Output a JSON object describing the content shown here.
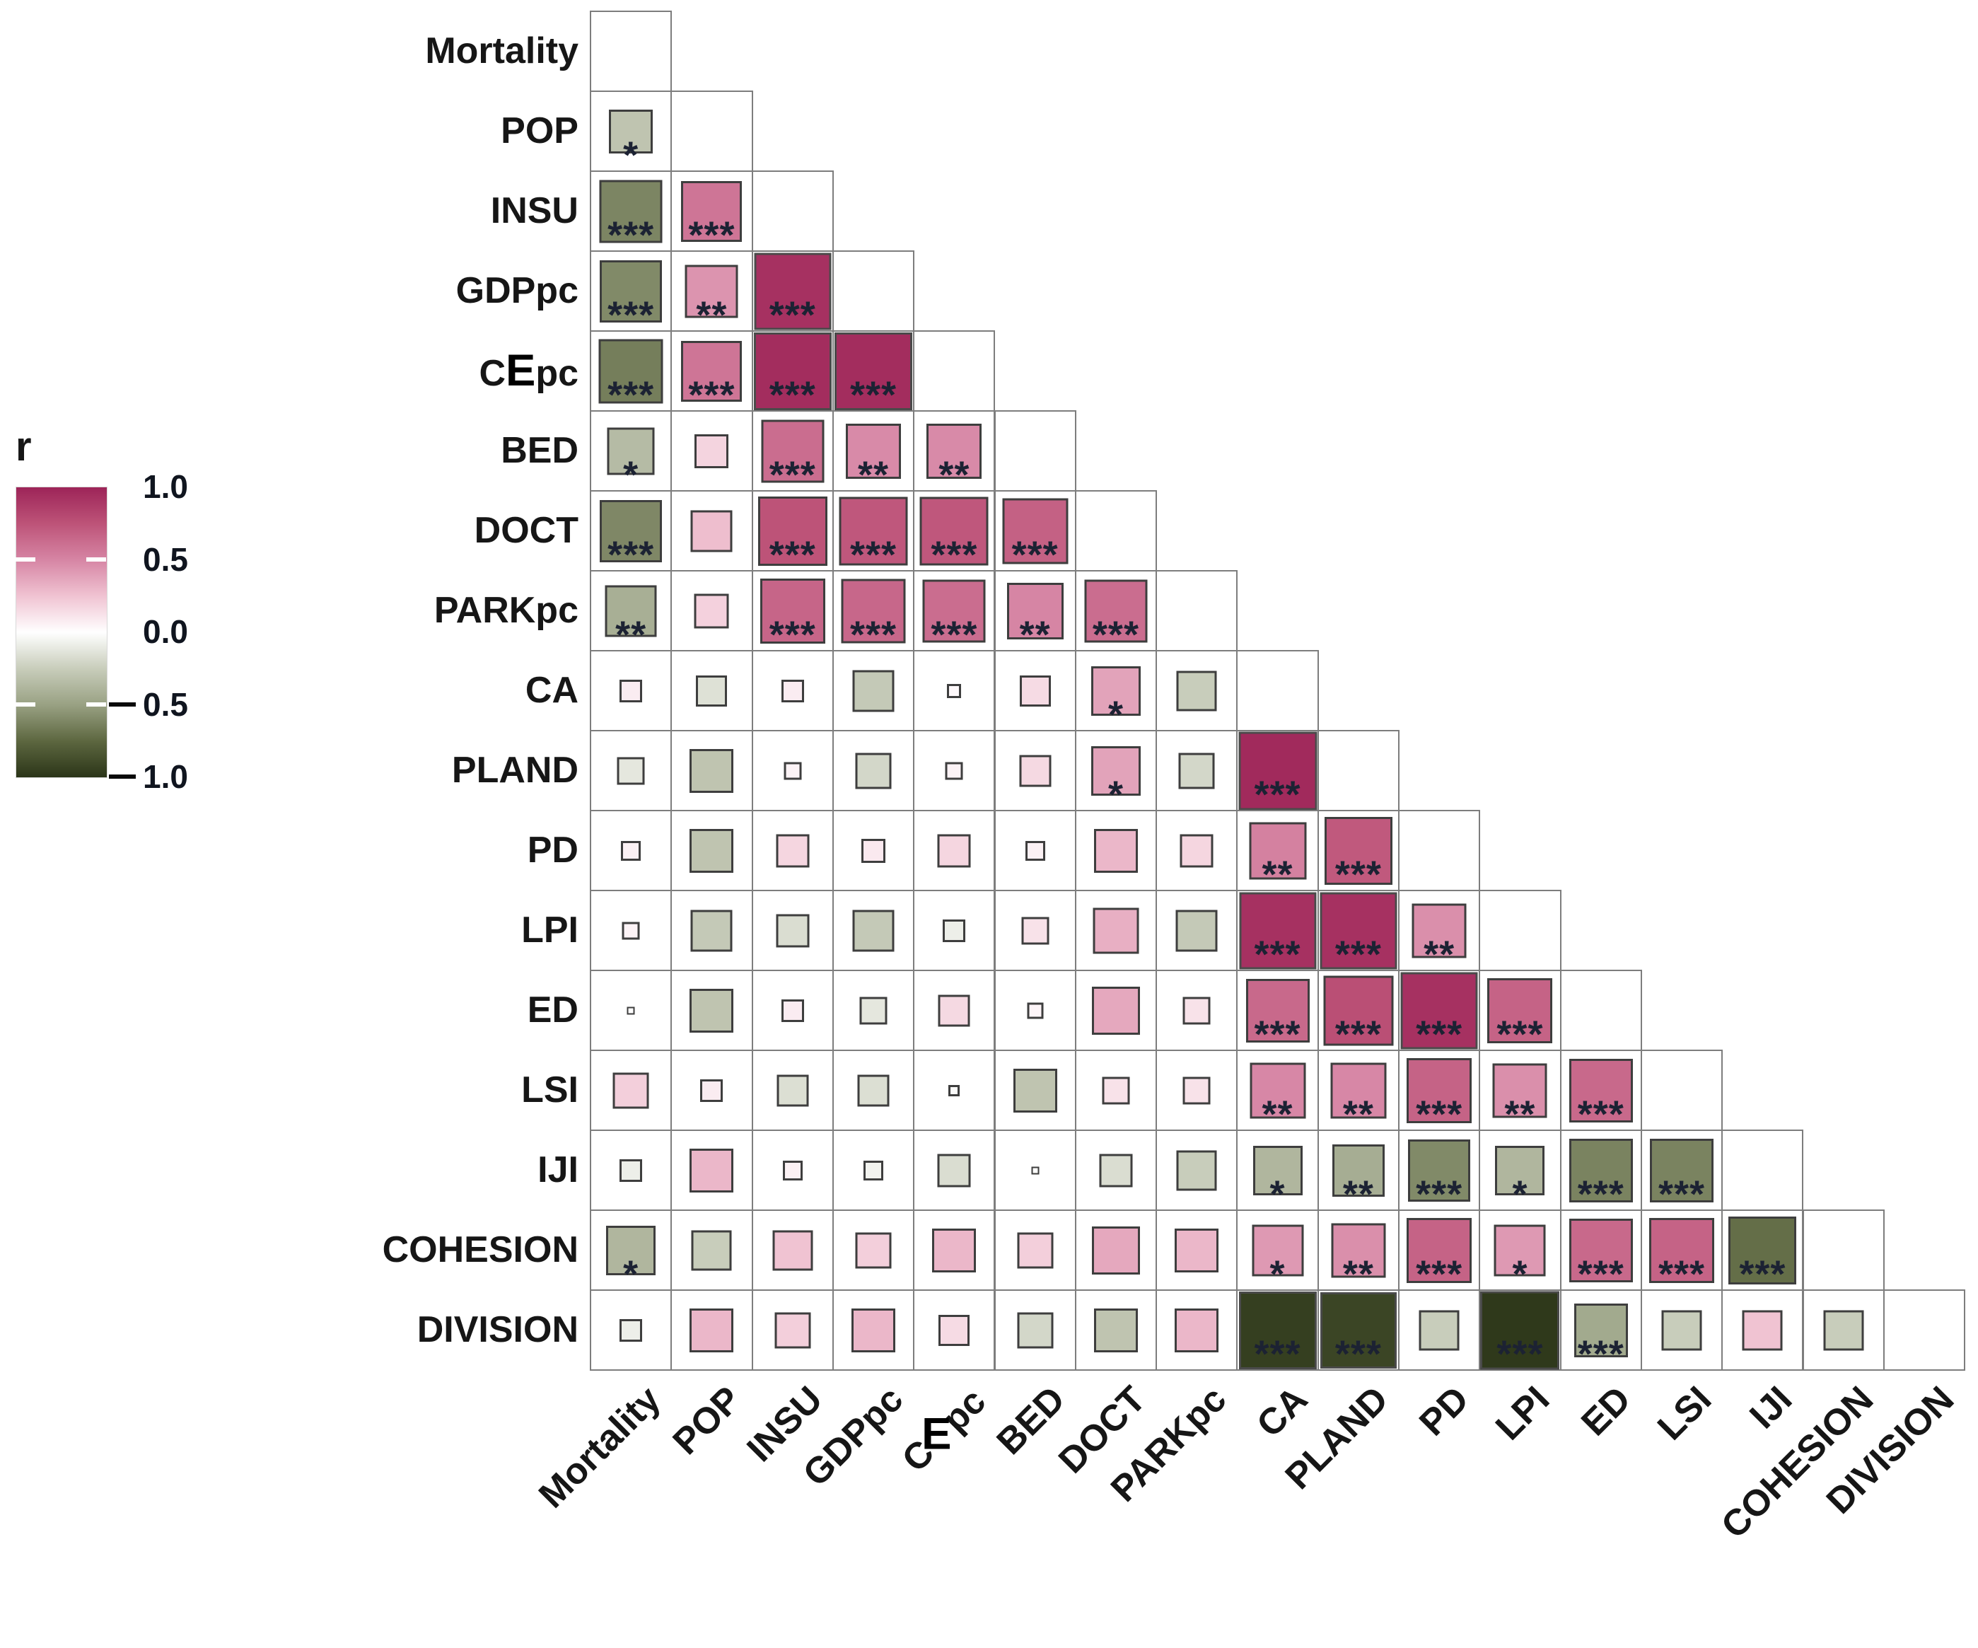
{
  "figure": {
    "kind": "lower-triangle correlation matrix plot",
    "background": "#ffffff",
    "text_color": "#161616",
    "grid_line_color": "#7d7d7d",
    "star_color": "#1c2233"
  },
  "legend": {
    "title": "r",
    "ticks": [
      {
        "label": "1.0",
        "r": 1.0
      },
      {
        "label": "0.5",
        "r": 0.5
      },
      {
        "label": "0.0",
        "r": 0.0
      },
      {
        "label": "-0.5",
        "r": -0.5
      },
      {
        "label": "-1.0",
        "r": -1.0
      }
    ]
  },
  "chart_data": {
    "type": "heatmap",
    "subtype": "correlation-matrix-lower-triangle",
    "value_name": "r",
    "value_range": [
      -1,
      1
    ],
    "square_size_encoding": "sqrt(|r|)",
    "significance_symbols_shown": [
      "*",
      "**",
      "***"
    ],
    "variables": [
      "Mortality",
      "POP",
      "INSU",
      "GDPpc",
      "CEpc",
      "BED",
      "DOCT",
      "PARKpc",
      "CA",
      "PLAND",
      "PD",
      "LPI",
      "ED",
      "LSI",
      "IJI",
      "COHESION",
      "DIVISION"
    ],
    "colormap": [
      {
        "r": -1.0,
        "color": "#2b3518"
      },
      {
        "r": -0.75,
        "color": "#5d6740"
      },
      {
        "r": -0.5,
        "color": "#99a183"
      },
      {
        "r": -0.25,
        "color": "#c8cdbb"
      },
      {
        "r": 0.0,
        "color": "#ffffff"
      },
      {
        "r": 0.25,
        "color": "#f0c3d2"
      },
      {
        "r": 0.5,
        "color": "#d685a4"
      },
      {
        "r": 0.75,
        "color": "#bd5378"
      },
      {
        "r": 1.0,
        "color": "#9d2458"
      }
    ],
    "rows": [
      {
        "var": "Mortality",
        "cells": []
      },
      {
        "var": "POP",
        "cells": [
          [
            -0.3,
            "*"
          ]
        ]
      },
      {
        "var": "INSU",
        "cells": [
          [
            -0.62,
            "***"
          ],
          [
            0.58,
            "***"
          ]
        ]
      },
      {
        "var": "GDPpc",
        "cells": [
          [
            -0.6,
            "***"
          ],
          [
            0.44,
            "**"
          ],
          [
            0.93,
            "***"
          ]
        ]
      },
      {
        "var": "CEpc",
        "cells": [
          [
            -0.65,
            "***"
          ],
          [
            0.58,
            "***"
          ],
          [
            0.95,
            "***"
          ],
          [
            0.95,
            "***"
          ]
        ]
      },
      {
        "var": "BED",
        "cells": [
          [
            -0.35,
            "*"
          ],
          [
            0.18,
            ""
          ],
          [
            0.62,
            "***"
          ],
          [
            0.48,
            "**"
          ],
          [
            0.48,
            "**"
          ]
        ]
      },
      {
        "var": "DOCT",
        "cells": [
          [
            -0.61,
            "***"
          ],
          [
            0.27,
            ""
          ],
          [
            0.75,
            "***"
          ],
          [
            0.73,
            "***"
          ],
          [
            0.73,
            "***"
          ],
          [
            0.68,
            "***"
          ]
        ]
      },
      {
        "var": "PARKpc",
        "cells": [
          [
            -0.42,
            "**"
          ],
          [
            0.19,
            ""
          ],
          [
            0.66,
            "***"
          ],
          [
            0.65,
            "***"
          ],
          [
            0.62,
            "***"
          ],
          [
            0.5,
            "**"
          ],
          [
            0.62,
            "***"
          ]
        ]
      },
      {
        "var": "CA",
        "cells": [
          [
            0.08,
            ""
          ],
          [
            -0.15,
            ""
          ],
          [
            0.08,
            ""
          ],
          [
            -0.27,
            ""
          ],
          [
            0.03,
            ""
          ],
          [
            0.15,
            ""
          ],
          [
            0.38,
            "*"
          ],
          [
            -0.25,
            ""
          ]
        ]
      },
      {
        "var": "PLAND",
        "cells": [
          [
            -0.12,
            ""
          ],
          [
            -0.3,
            ""
          ],
          [
            0.05,
            ""
          ],
          [
            -0.2,
            ""
          ],
          [
            0.05,
            ""
          ],
          [
            0.16,
            ""
          ],
          [
            0.38,
            "*"
          ],
          [
            -0.2,
            ""
          ],
          [
            0.97,
            "***"
          ]
        ]
      },
      {
        "var": "PD",
        "cells": [
          [
            0.06,
            ""
          ],
          [
            -0.3,
            ""
          ],
          [
            0.17,
            ""
          ],
          [
            0.09,
            ""
          ],
          [
            0.17,
            ""
          ],
          [
            0.06,
            ""
          ],
          [
            0.3,
            ""
          ],
          [
            0.17,
            ""
          ],
          [
            0.52,
            "**"
          ],
          [
            0.72,
            "***"
          ]
        ]
      },
      {
        "var": "LPI",
        "cells": [
          [
            0.05,
            ""
          ],
          [
            -0.27,
            ""
          ],
          [
            -0.17,
            ""
          ],
          [
            -0.27,
            ""
          ],
          [
            -0.08,
            ""
          ],
          [
            0.12,
            ""
          ],
          [
            0.33,
            ""
          ],
          [
            -0.27,
            ""
          ],
          [
            0.93,
            "***"
          ],
          [
            0.93,
            "***"
          ],
          [
            0.46,
            "**"
          ]
        ]
      },
      {
        "var": "ED",
        "cells": [
          [
            0.01,
            ""
          ],
          [
            -0.3,
            ""
          ],
          [
            0.08,
            ""
          ],
          [
            -0.12,
            ""
          ],
          [
            0.16,
            ""
          ],
          [
            0.04,
            ""
          ],
          [
            0.36,
            ""
          ],
          [
            0.12,
            ""
          ],
          [
            0.64,
            "***"
          ],
          [
            0.77,
            "***"
          ],
          [
            0.93,
            "***"
          ],
          [
            0.67,
            "***"
          ]
        ]
      },
      {
        "var": "LSI",
        "cells": [
          [
            0.2,
            ""
          ],
          [
            0.08,
            ""
          ],
          [
            -0.16,
            ""
          ],
          [
            -0.16,
            ""
          ],
          [
            -0.02,
            ""
          ],
          [
            -0.3,
            ""
          ],
          [
            0.12,
            ""
          ],
          [
            0.12,
            ""
          ],
          [
            0.49,
            "**"
          ],
          [
            0.49,
            "**"
          ],
          [
            0.67,
            "***"
          ],
          [
            0.46,
            "**"
          ],
          [
            0.64,
            "***"
          ]
        ]
      },
      {
        "var": "IJI",
        "cells": [
          [
            -0.08,
            ""
          ],
          [
            0.3,
            ""
          ],
          [
            0.06,
            ""
          ],
          [
            -0.06,
            ""
          ],
          [
            -0.17,
            ""
          ],
          [
            -0.01,
            ""
          ],
          [
            -0.17,
            ""
          ],
          [
            -0.25,
            ""
          ],
          [
            -0.38,
            "*"
          ],
          [
            -0.43,
            "**"
          ],
          [
            -0.6,
            "***"
          ],
          [
            -0.38,
            "*"
          ],
          [
            -0.63,
            "***"
          ],
          [
            -0.63,
            "***"
          ]
        ]
      },
      {
        "var": "COHESION",
        "cells": [
          [
            -0.38,
            "*"
          ],
          [
            -0.25,
            ""
          ],
          [
            0.25,
            ""
          ],
          [
            0.2,
            ""
          ],
          [
            0.3,
            ""
          ],
          [
            0.2,
            ""
          ],
          [
            0.36,
            ""
          ],
          [
            0.3,
            ""
          ],
          [
            0.42,
            "*"
          ],
          [
            0.46,
            "**"
          ],
          [
            0.67,
            "***"
          ],
          [
            0.42,
            "*"
          ],
          [
            0.64,
            "***"
          ],
          [
            0.67,
            "***"
          ],
          [
            -0.72,
            "***"
          ]
        ]
      },
      {
        "var": "DIVISION",
        "cells": [
          [
            -0.08,
            ""
          ],
          [
            0.3,
            ""
          ],
          [
            0.2,
            ""
          ],
          [
            0.3,
            ""
          ],
          [
            0.15,
            ""
          ],
          [
            -0.2,
            ""
          ],
          [
            -0.3,
            ""
          ],
          [
            0.3,
            ""
          ],
          [
            -0.95,
            "***"
          ],
          [
            -0.92,
            "***"
          ],
          [
            -0.25,
            ""
          ],
          [
            -0.98,
            "***"
          ],
          [
            -0.45,
            "***"
          ],
          [
            -0.25,
            ""
          ],
          [
            0.25,
            ""
          ],
          [
            -0.25,
            ""
          ]
        ]
      }
    ]
  }
}
